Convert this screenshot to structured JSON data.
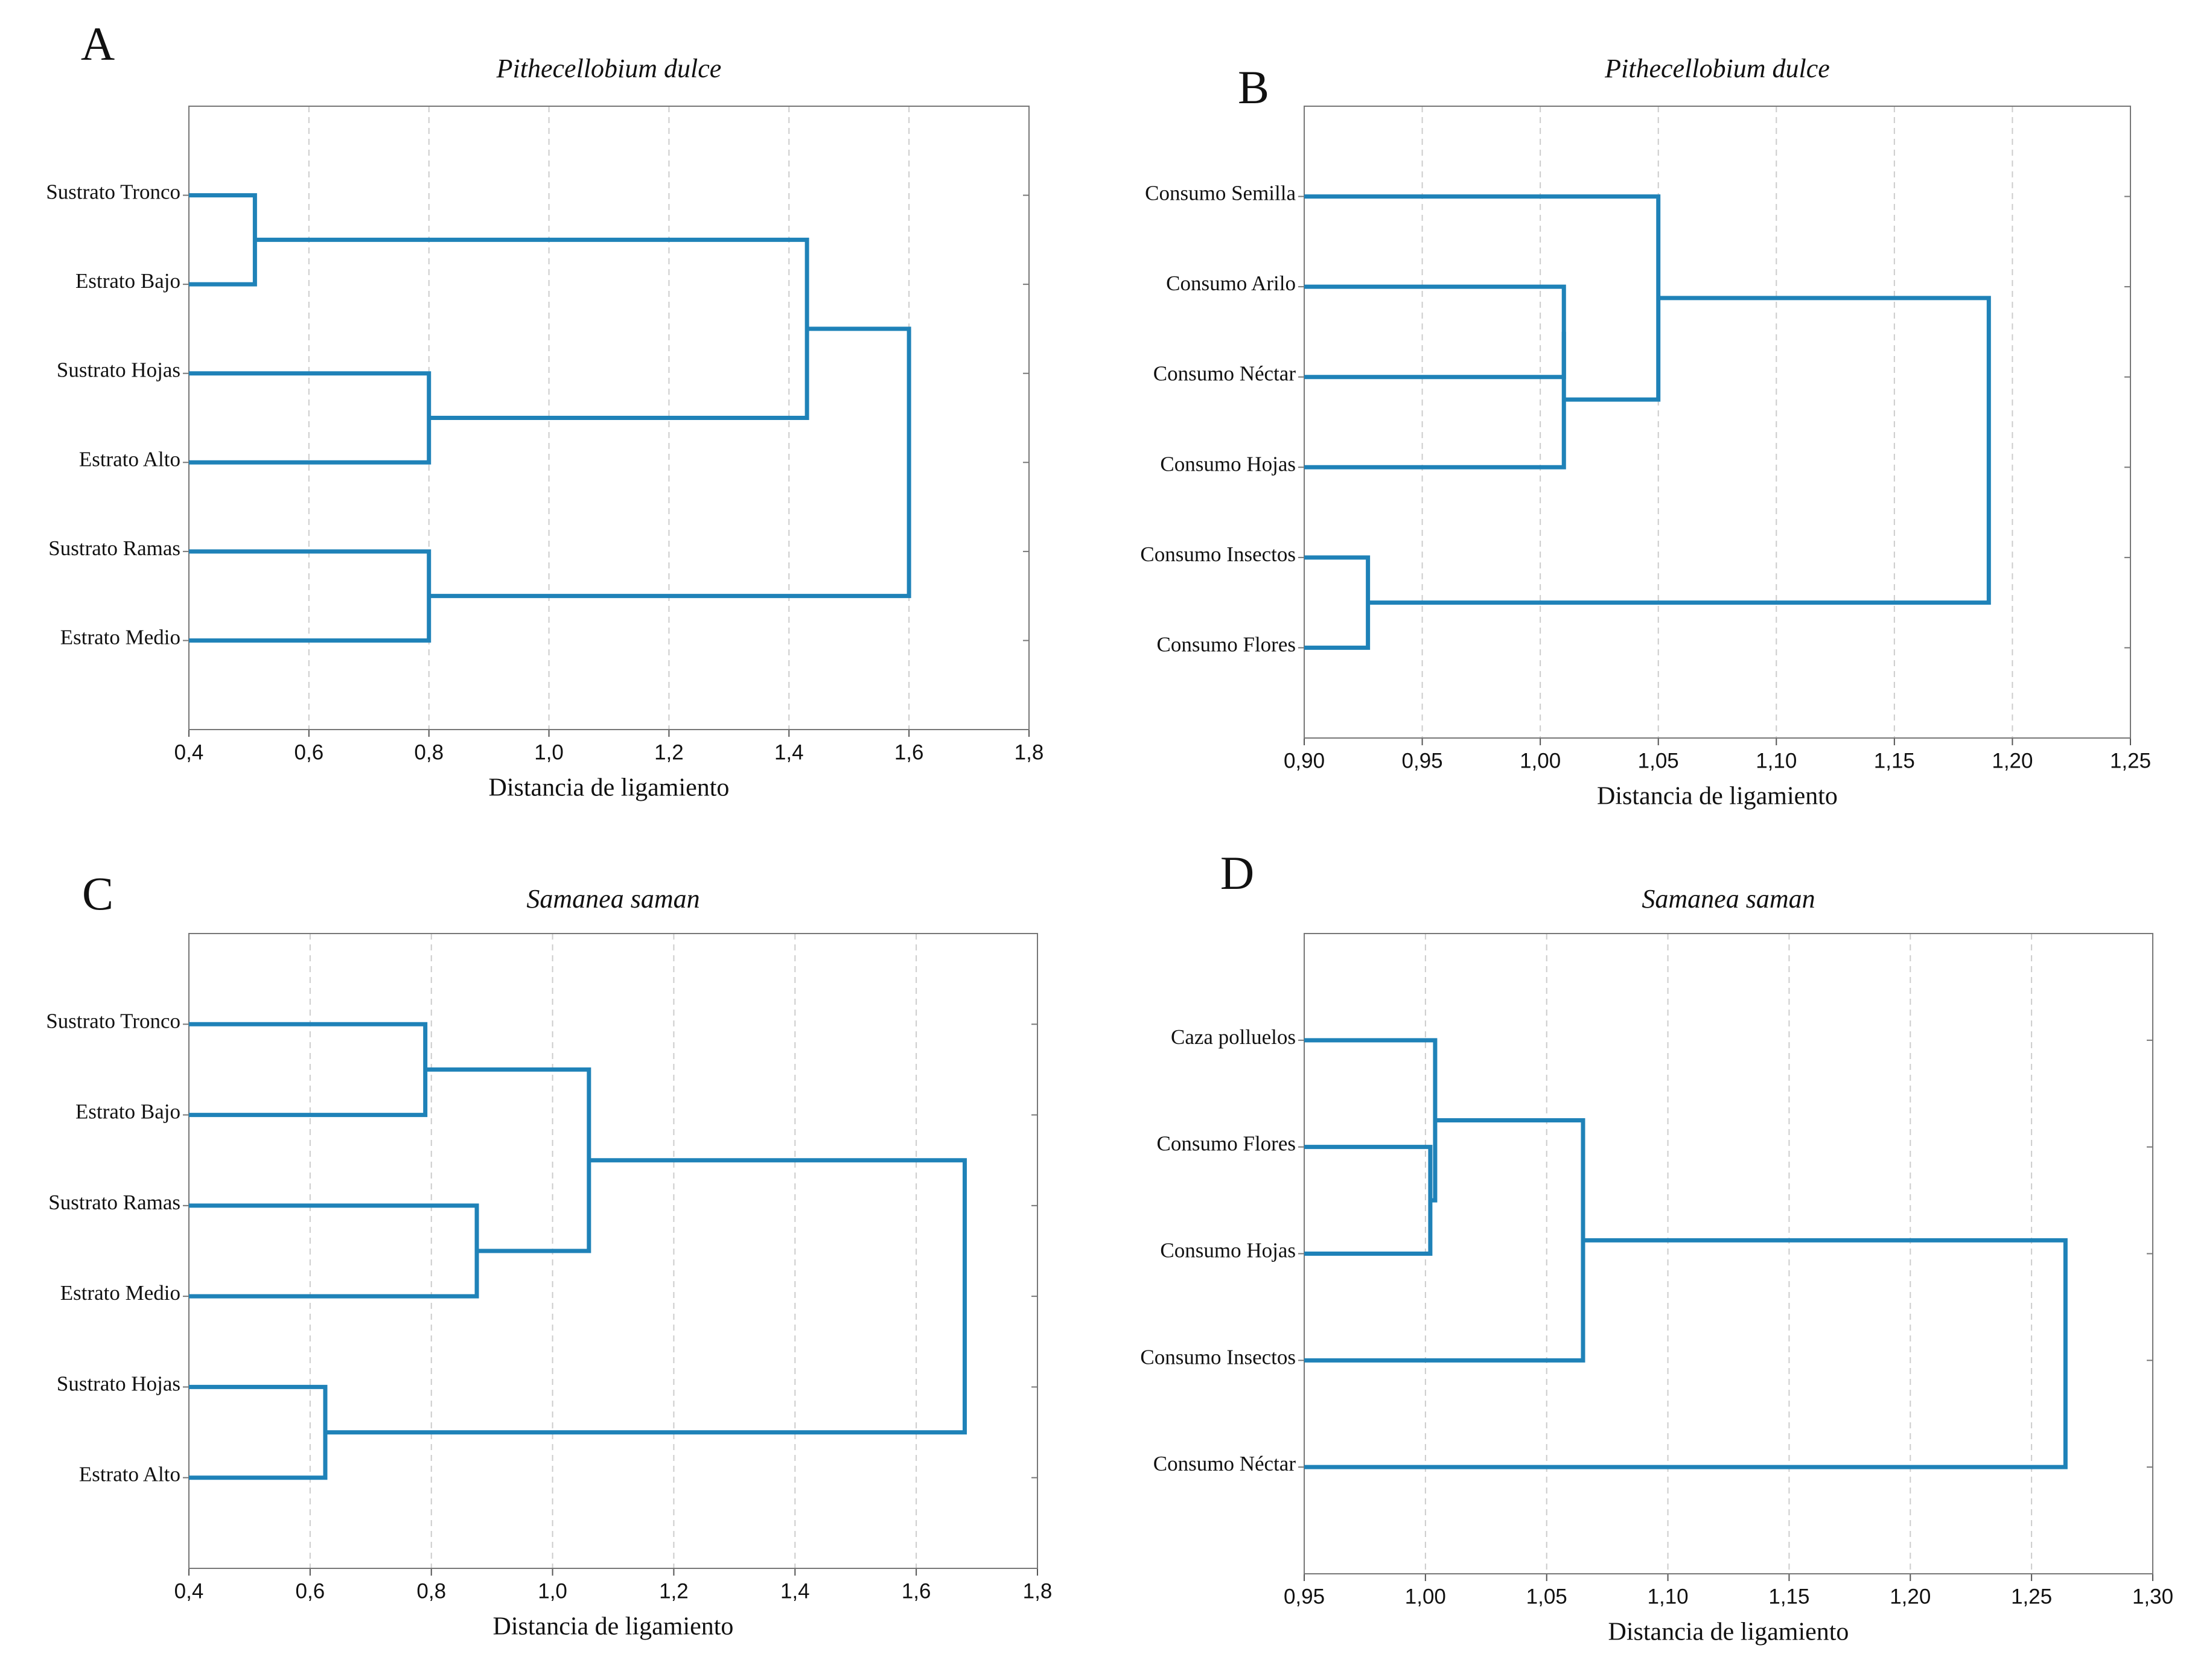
{
  "chart_data": [
    {
      "type": "dendrogram",
      "panel": "A",
      "title": "Pithecellobium dulce",
      "xlabel": "Distancia de ligamiento",
      "leaves": [
        "Sustrato Tronco",
        "Estrato Bajo",
        "Sustrato Hojas",
        "Estrato Alto",
        "Sustrato Ramas",
        "Estrato Medio"
      ],
      "merges": [
        {
          "children": [
            0,
            1
          ],
          "distance": 0.51
        },
        {
          "children": [
            2,
            3
          ],
          "distance": 0.8
        },
        {
          "children": [
            4,
            5
          ],
          "distance": 0.8
        },
        {
          "children": [
            6,
            7
          ],
          "distance": 1.43
        },
        {
          "children": [
            9,
            8
          ],
          "distance": 1.6
        }
      ],
      "xlim": [
        0.4,
        1.8
      ],
      "xticks": [
        {
          "value": 0.4,
          "label": "0,4"
        },
        {
          "value": 0.6,
          "label": "0,6"
        },
        {
          "value": 0.8,
          "label": "0,8"
        },
        {
          "value": 1.0,
          "label": "1,0"
        },
        {
          "value": 1.2,
          "label": "1,2"
        },
        {
          "value": 1.4,
          "label": "1,4"
        },
        {
          "value": 1.6,
          "label": "1,6"
        },
        {
          "value": 1.8,
          "label": "1,8"
        }
      ],
      "grid": true,
      "color": "#1f82b8"
    },
    {
      "type": "dendrogram",
      "panel": "B",
      "title": "Pithecellobium dulce",
      "xlabel": "Distancia de ligamiento",
      "leaves": [
        "Consumo Semilla",
        "Consumo Arilo",
        "Consumo Néctar",
        "Consumo Hojas",
        "Consumo Insectos",
        "Consumo Flores"
      ],
      "merges": [
        {
          "children": [
            1,
            2
          ],
          "distance": 1.01
        },
        {
          "children": [
            6,
            3
          ],
          "distance": 1.01
        },
        {
          "children": [
            0,
            7
          ],
          "distance": 1.05
        },
        {
          "children": [
            4,
            5
          ],
          "distance": 0.927
        },
        {
          "children": [
            8,
            9
          ],
          "distance": 1.19
        }
      ],
      "xlim": [
        0.9,
        1.25
      ],
      "xticks": [
        {
          "value": 0.9,
          "label": "0,90"
        },
        {
          "value": 0.95,
          "label": "0,95"
        },
        {
          "value": 1.0,
          "label": "1,00"
        },
        {
          "value": 1.05,
          "label": "1,05"
        },
        {
          "value": 1.1,
          "label": "1,10"
        },
        {
          "value": 1.15,
          "label": "1,15"
        },
        {
          "value": 1.2,
          "label": "1,20"
        },
        {
          "value": 1.25,
          "label": "1,25"
        }
      ],
      "grid": true,
      "color": "#1f82b8"
    },
    {
      "type": "dendrogram",
      "panel": "C",
      "title": "Samanea saman",
      "xlabel": "Distancia de ligamiento",
      "leaves": [
        "Sustrato Tronco",
        "Estrato Bajo",
        "Sustrato Ramas",
        "Estrato Medio",
        "Sustrato Hojas",
        "Estrato Alto"
      ],
      "merges": [
        {
          "children": [
            0,
            1
          ],
          "distance": 0.79
        },
        {
          "children": [
            2,
            3
          ],
          "distance": 0.875
        },
        {
          "children": [
            6,
            7
          ],
          "distance": 1.06
        },
        {
          "children": [
            4,
            5
          ],
          "distance": 0.625
        },
        {
          "children": [
            8,
            9
          ],
          "distance": 1.68
        }
      ],
      "xlim": [
        0.4,
        1.8
      ],
      "xticks": [
        {
          "value": 0.4,
          "label": "0,4"
        },
        {
          "value": 0.6,
          "label": "0,6"
        },
        {
          "value": 0.8,
          "label": "0,8"
        },
        {
          "value": 1.0,
          "label": "1,0"
        },
        {
          "value": 1.2,
          "label": "1,2"
        },
        {
          "value": 1.4,
          "label": "1,4"
        },
        {
          "value": 1.6,
          "label": "1,6"
        },
        {
          "value": 1.8,
          "label": "1,8"
        }
      ],
      "grid": true,
      "color": "#1f82b8"
    },
    {
      "type": "dendrogram",
      "panel": "D",
      "title": "Samanea saman",
      "xlabel": "Distancia de ligamiento",
      "leaves": [
        "Caza polluelos",
        "Consumo Flores",
        "Consumo Hojas",
        "Consumo Insectos",
        "Consumo Néctar"
      ],
      "merges": [
        {
          "children": [
            1,
            2
          ],
          "distance": 1.002
        },
        {
          "children": [
            5,
            0
          ],
          "distance": 1.004
        },
        {
          "children": [
            6,
            3
          ],
          "distance": 1.065
        },
        {
          "children": [
            7,
            4
          ],
          "distance": 1.264
        }
      ],
      "xlim": [
        0.95,
        1.3
      ],
      "xticks": [
        {
          "value": 0.95,
          "label": "0,95"
        },
        {
          "value": 1.0,
          "label": "1,00"
        },
        {
          "value": 1.05,
          "label": "1,05"
        },
        {
          "value": 1.1,
          "label": "1,10"
        },
        {
          "value": 1.15,
          "label": "1,15"
        },
        {
          "value": 1.2,
          "label": "1,20"
        },
        {
          "value": 1.25,
          "label": "1,25"
        },
        {
          "value": 1.3,
          "label": "1,30"
        }
      ],
      "grid": true,
      "color": "#1f82b8"
    }
  ]
}
